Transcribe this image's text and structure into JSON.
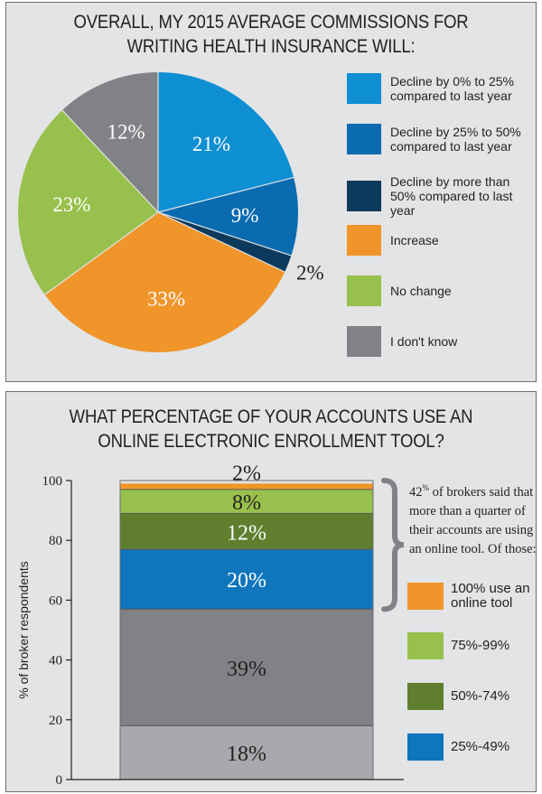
{
  "chart_data": [
    {
      "type": "pie",
      "title": "OVERALL, MY 2015 AVERAGE COMMISSIONS FOR WRITING HEALTH INSURANCE WILL:",
      "slices": [
        {
          "name": "Decline by 0% to 25% compared to last year",
          "value": 21,
          "label": "21%",
          "color": "#0e8fd4"
        },
        {
          "name": "Decline by 25% to 50% compared to last year",
          "value": 9,
          "label": "9%",
          "color": "#0a6bb0"
        },
        {
          "name": "Decline by more than 50% compared to last year",
          "value": 2,
          "label": "2%",
          "color": "#0b3a5c"
        },
        {
          "name": "Increase",
          "value": 33,
          "label": "33%",
          "color": "#f0952a"
        },
        {
          "name": "No change",
          "value": 23,
          "label": "23%",
          "color": "#98c04c"
        },
        {
          "name": "I don't know",
          "value": 12,
          "label": "12%",
          "color": "#808285"
        }
      ],
      "legend_placement": "right"
    },
    {
      "type": "bar",
      "stacked": true,
      "title": "WHAT PERCENTAGE OF YOUR ACCOUNTS USE AN ONLINE ELECTRONIC ENROLLMENT TOOL?",
      "ylabel": "% of broker respondents",
      "ylim": [
        0,
        100
      ],
      "yticks": [
        "0",
        "20",
        "40",
        "60",
        "80",
        "100"
      ],
      "segments": [
        {
          "value": 18,
          "label": "18%",
          "color": "#a7a9ac"
        },
        {
          "value": 39,
          "label": "39%",
          "color": "#808285"
        },
        {
          "value": 20,
          "label": "20%",
          "color": "#0f75bc",
          "legend": "25%-49%"
        },
        {
          "value": 12,
          "label": "12%",
          "color": "#5f7f2e",
          "legend": "50%-74%"
        },
        {
          "value": 8,
          "label": "8%",
          "color": "#98c04c",
          "legend": "75%-99%"
        },
        {
          "value": 2,
          "label": "2%",
          "color": "#f0952a",
          "legend": "100% use an online tool"
        }
      ],
      "annotation": {
        "number": "42",
        "sup": "%",
        "text": " of brokers said that more than a quarter of their accounts are using an online tool. Of those:"
      },
      "legend_items": [
        {
          "label": "100% use an online tool",
          "color": "#f0952a"
        },
        {
          "label": "75%-99%",
          "color": "#98c04c"
        },
        {
          "label": "50%-74%",
          "color": "#5f7f2e"
        },
        {
          "label": "25%-49%",
          "color": "#0f75bc"
        }
      ],
      "legend_placement": "right"
    }
  ]
}
